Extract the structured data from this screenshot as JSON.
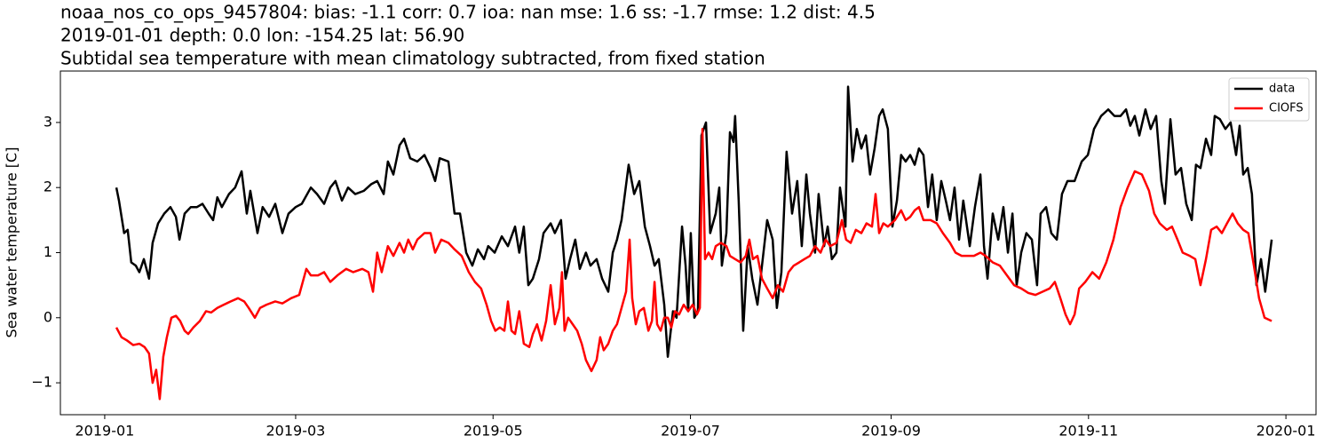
{
  "chart_data": {
    "type": "line",
    "title": [
      "noaa_nos_co_ops_9457804: bias: -1.1  corr: 0.7  ioa: nan  mse: 1.6  ss: -1.7  rmse: 1.2  dist: 4.5",
      "2019-01-01 depth: 0.0 lon: -154.25 lat: 56.90",
      "Subtidal sea temperature with mean climatology subtracted, from fixed station"
    ],
    "ylabel": "Sea water temperature [C]",
    "xlim": [
      -13.7,
      374.3
    ],
    "xticks": [
      {
        "value": 0,
        "label": "2019-01"
      },
      {
        "value": 59,
        "label": "2019-03"
      },
      {
        "value": 120,
        "label": "2019-05"
      },
      {
        "value": 181,
        "label": "2019-07"
      },
      {
        "value": 243,
        "label": "2019-09"
      },
      {
        "value": 304,
        "label": "2019-11"
      },
      {
        "value": 365,
        "label": "2020-01"
      }
    ],
    "ylim": [
      -1.49,
      3.79
    ],
    "yticks": [
      {
        "value": -1,
        "label": "−1"
      },
      0,
      1,
      2,
      3
    ],
    "grid": false,
    "legend": "upper right",
    "series": [
      {
        "name": "data",
        "color": "#000000",
        "x": [
          3.6,
          4.4,
          6.0,
          7.1,
          8.2,
          9.6,
          10.7,
          12.1,
          13.7,
          14.8,
          16.5,
          18.4,
          20.3,
          22.0,
          23.1,
          24.7,
          26.6,
          28.5,
          30.2,
          32.1,
          33.5,
          34.8,
          36.2,
          38.4,
          40.3,
          42.3,
          43.9,
          45.0,
          47.2,
          48.8,
          50.8,
          52.7,
          54.9,
          56.8,
          59.0,
          60.9,
          63.7,
          65.6,
          67.8,
          69.7,
          71.3,
          73.3,
          75.2,
          77.4,
          80.1,
          82.3,
          84.2,
          86.2,
          87.5,
          89.2,
          91.1,
          92.5,
          94.4,
          96.6,
          98.8,
          100.7,
          102.1,
          103.5,
          106.2,
          108.1,
          109.8,
          111.7,
          113.6,
          115.3,
          117.2,
          118.5,
          120.5,
          122.7,
          124.6,
          126.8,
          128.1,
          129.5,
          130.9,
          132.3,
          134.2,
          135.6,
          137.8,
          139.1,
          141.0,
          142.4,
          143.8,
          145.4,
          146.8,
          148.7,
          150.1,
          152.0,
          153.7,
          155.6,
          157.0,
          158.3,
          159.7,
          161.9,
          163.6,
          165.2,
          166.9,
          168.5,
          169.9,
          171.2,
          172.9,
          174.0,
          175.6,
          176.7,
          178.4,
          179.5,
          180.3,
          181.1,
          182.2,
          183.3,
          184.4,
          185.8,
          187.1,
          188.8,
          189.9,
          190.7,
          192.1,
          193.2,
          194.3,
          194.8,
          195.9,
          197.3,
          198.7,
          200.1,
          201.7,
          203.1,
          204.7,
          206.4,
          207.7,
          209.1,
          210.7,
          212.4,
          214.0,
          215.4,
          216.8,
          217.9,
          219.5,
          220.6,
          222.3,
          223.4,
          224.7,
          226.1,
          227.2,
          228.9,
          229.7,
          231.1,
          232.4,
          233.8,
          235.2,
          236.5,
          237.9,
          239.3,
          240.4,
          242.0,
          243.4,
          244.8,
          246.1,
          247.5,
          248.9,
          250.3,
          251.6,
          253.0,
          254.4,
          255.7,
          257.1,
          258.5,
          259.9,
          261.2,
          262.6,
          264.0,
          265.3,
          267.3,
          268.9,
          270.6,
          271.7,
          272.8,
          274.4,
          276.1,
          277.7,
          279.1,
          280.5,
          281.8,
          283.2,
          284.8,
          286.5,
          288.1,
          289.2,
          290.9,
          292.5,
          294.2,
          295.8,
          297.5,
          299.7,
          301.9,
          303.8,
          305.7,
          307.9,
          310.1,
          312.0,
          313.9,
          315.6,
          316.9,
          318.3,
          319.7,
          321.6,
          323.2,
          324.9,
          326.5,
          327.6,
          329.3,
          330.9,
          332.6,
          334.2,
          335.9,
          337.2,
          338.6,
          340.3,
          341.9,
          343.0,
          344.6,
          346.3,
          347.9,
          349.6,
          350.7,
          351.8,
          353.2,
          354.5,
          355.9,
          357.3,
          358.6,
          360.6
        ],
        "values": [
          2.0,
          1.8,
          1.3,
          1.35,
          0.85,
          0.8,
          0.7,
          0.9,
          0.6,
          1.15,
          1.45,
          1.6,
          1.7,
          1.55,
          1.2,
          1.6,
          1.7,
          1.7,
          1.75,
          1.6,
          1.5,
          1.85,
          1.7,
          1.9,
          2.0,
          2.25,
          1.6,
          1.95,
          1.3,
          1.7,
          1.55,
          1.75,
          1.3,
          1.6,
          1.7,
          1.75,
          2.0,
          1.9,
          1.75,
          2.0,
          2.1,
          1.8,
          2.0,
          1.9,
          1.95,
          2.05,
          2.1,
          1.9,
          2.4,
          2.2,
          2.65,
          2.75,
          2.45,
          2.4,
          2.5,
          2.3,
          2.1,
          2.45,
          2.4,
          1.6,
          1.6,
          1.0,
          0.8,
          1.05,
          0.9,
          1.1,
          1.0,
          1.25,
          1.1,
          1.4,
          1.0,
          1.4,
          0.5,
          0.6,
          0.9,
          1.3,
          1.45,
          1.3,
          1.5,
          0.6,
          0.9,
          1.2,
          0.75,
          1.0,
          0.8,
          0.9,
          0.6,
          0.4,
          1.0,
          1.2,
          1.5,
          2.35,
          1.9,
          2.1,
          1.4,
          1.1,
          0.8,
          0.9,
          0.2,
          -0.6,
          0.1,
          0.0,
          1.4,
          0.8,
          0.1,
          1.3,
          0.0,
          0.1,
          2.8,
          3.0,
          1.3,
          1.6,
          2.0,
          0.8,
          1.3,
          2.85,
          2.7,
          3.1,
          1.8,
          -0.2,
          1.1,
          0.6,
          0.2,
          0.8,
          1.5,
          1.2,
          0.15,
          0.7,
          2.55,
          1.6,
          2.1,
          1.1,
          2.2,
          1.6,
          1.0,
          1.9,
          1.1,
          1.4,
          0.9,
          1.0,
          2.0,
          1.4,
          3.55,
          2.4,
          2.9,
          2.6,
          2.8,
          2.2,
          2.6,
          3.1,
          3.2,
          2.9,
          1.4,
          1.8,
          2.5,
          2.4,
          2.5,
          2.35,
          2.6,
          2.5,
          1.7,
          2.2,
          1.5,
          2.1,
          1.8,
          1.5,
          2.0,
          1.2,
          1.8,
          1.1,
          1.7,
          2.2,
          1.1,
          0.6,
          1.6,
          1.2,
          1.7,
          1.0,
          1.6,
          0.5,
          1.0,
          1.3,
          1.2,
          0.5,
          1.6,
          1.7,
          1.3,
          1.2,
          1.9,
          2.1,
          2.1,
          2.4,
          2.5,
          2.9,
          3.1,
          3.2,
          3.1,
          3.1,
          3.2,
          2.95,
          3.1,
          2.8,
          3.2,
          2.9,
          3.1,
          2.1,
          1.75,
          3.05,
          2.2,
          2.3,
          1.75,
          1.5,
          2.35,
          2.3,
          2.75,
          2.5,
          3.1,
          3.05,
          2.9,
          3.0,
          2.5,
          2.95,
          2.2,
          2.3,
          1.9,
          0.5,
          0.9,
          0.4,
          1.2
        ]
      },
      {
        "name": "CIOFS",
        "color": "#ff0000",
        "x": [
          3.6,
          5.2,
          6.9,
          8.8,
          10.7,
          12.3,
          13.7,
          14.8,
          15.9,
          17.0,
          18.1,
          19.2,
          20.6,
          22.0,
          23.3,
          24.7,
          25.8,
          27.4,
          29.4,
          31.3,
          32.9,
          34.8,
          36.8,
          38.9,
          41.2,
          43.1,
          44.5,
          46.4,
          48.0,
          50.0,
          52.7,
          54.9,
          57.6,
          60.1,
          62.3,
          63.7,
          65.9,
          67.8,
          69.7,
          71.9,
          74.6,
          76.8,
          79.6,
          81.5,
          82.9,
          84.2,
          85.6,
          87.5,
          89.2,
          91.1,
          92.5,
          93.8,
          95.2,
          96.6,
          98.8,
          100.7,
          102.1,
          104.0,
          106.2,
          108.1,
          110.3,
          112.5,
          114.4,
          116.3,
          118.0,
          119.4,
          120.7,
          122.1,
          123.5,
          124.6,
          125.7,
          126.8,
          128.1,
          129.5,
          131.2,
          132.3,
          133.6,
          135.0,
          136.4,
          137.8,
          139.1,
          140.5,
          141.3,
          142.1,
          143.2,
          144.6,
          146.0,
          147.4,
          148.7,
          150.4,
          152.0,
          153.1,
          154.2,
          155.6,
          157.0,
          158.3,
          159.7,
          161.1,
          162.2,
          163.0,
          164.1,
          165.2,
          166.6,
          168.0,
          169.1,
          169.9,
          170.7,
          171.8,
          172.9,
          174.0,
          175.1,
          176.2,
          177.5,
          178.9,
          180.3,
          181.7,
          183.0,
          183.9,
          184.7,
          185.5,
          186.6,
          187.7,
          188.8,
          190.4,
          192.1,
          193.2,
          194.8,
          196.5,
          198.1,
          199.2,
          200.3,
          201.7,
          203.1,
          204.7,
          206.4,
          208.0,
          209.6,
          211.3,
          212.9,
          214.6,
          216.2,
          217.9,
          219.5,
          221.2,
          222.8,
          224.2,
          226.1,
          227.8,
          229.1,
          230.5,
          232.1,
          233.8,
          235.4,
          237.1,
          238.2,
          239.3,
          240.6,
          242.0,
          244.2,
          246.1,
          247.5,
          248.9,
          250.3,
          251.6,
          253.0,
          255.2,
          257.1,
          259.0,
          261.2,
          262.9,
          264.8,
          266.7,
          268.6,
          270.6,
          272.2,
          274.4,
          276.6,
          278.8,
          281.0,
          283.2,
          285.4,
          287.6,
          289.8,
          292.0,
          293.6,
          295.3,
          296.9,
          298.3,
          299.7,
          301.1,
          303.0,
          305.2,
          307.3,
          309.5,
          311.7,
          313.9,
          316.1,
          318.3,
          320.5,
          322.7,
          324.3,
          326.0,
          328.2,
          329.8,
          331.5,
          333.1,
          335.3,
          337.0,
          338.6,
          340.3,
          341.9,
          343.6,
          345.2,
          346.8,
          348.5,
          350.1,
          351.8,
          353.4,
          355.1,
          356.7,
          358.4,
          360.6
        ],
        "values": [
          -0.15,
          -0.3,
          -0.35,
          -0.42,
          -0.4,
          -0.45,
          -0.55,
          -1.0,
          -0.8,
          -1.25,
          -0.6,
          -0.3,
          0.0,
          0.03,
          -0.05,
          -0.2,
          -0.25,
          -0.15,
          -0.05,
          0.1,
          0.08,
          0.15,
          0.2,
          0.25,
          0.3,
          0.25,
          0.15,
          0.0,
          0.15,
          0.2,
          0.25,
          0.22,
          0.3,
          0.35,
          0.75,
          0.65,
          0.65,
          0.7,
          0.55,
          0.65,
          0.75,
          0.7,
          0.75,
          0.7,
          0.4,
          1.0,
          0.7,
          1.1,
          0.95,
          1.15,
          1.0,
          1.2,
          1.05,
          1.2,
          1.3,
          1.3,
          1.0,
          1.2,
          1.15,
          1.05,
          0.95,
          0.7,
          0.55,
          0.45,
          0.2,
          -0.05,
          -0.2,
          -0.15,
          -0.2,
          0.25,
          -0.2,
          -0.25,
          0.1,
          -0.4,
          -0.45,
          -0.25,
          -0.1,
          -0.35,
          -0.05,
          0.5,
          -0.1,
          0.15,
          0.7,
          -0.2,
          0.0,
          -0.1,
          -0.2,
          -0.4,
          -0.65,
          -0.82,
          -0.65,
          -0.3,
          -0.5,
          -0.4,
          -0.2,
          -0.1,
          0.15,
          0.4,
          1.2,
          0.3,
          -0.1,
          0.1,
          0.15,
          -0.2,
          -0.05,
          0.55,
          -0.1,
          -0.2,
          0.0,
          0.0,
          -0.15,
          0.1,
          0.05,
          0.2,
          0.1,
          0.2,
          0.05,
          0.15,
          2.9,
          0.9,
          1.0,
          0.9,
          1.1,
          1.15,
          1.1,
          0.95,
          0.9,
          0.85,
          0.95,
          1.2,
          0.9,
          0.95,
          0.6,
          0.45,
          0.3,
          0.5,
          0.4,
          0.7,
          0.8,
          0.85,
          0.9,
          0.95,
          1.1,
          1.0,
          1.2,
          1.1,
          1.15,
          1.5,
          1.2,
          1.15,
          1.35,
          1.3,
          1.45,
          1.4,
          1.9,
          1.3,
          1.45,
          1.4,
          1.5,
          1.65,
          1.5,
          1.55,
          1.65,
          1.7,
          1.5,
          1.5,
          1.45,
          1.3,
          1.15,
          1.0,
          0.95,
          0.95,
          0.95,
          1.0,
          0.95,
          0.85,
          0.8,
          0.65,
          0.5,
          0.45,
          0.38,
          0.35,
          0.4,
          0.45,
          0.55,
          0.3,
          0.05,
          -0.1,
          0.05,
          0.45,
          0.55,
          0.7,
          0.6,
          0.85,
          1.2,
          1.7,
          2.0,
          2.25,
          2.2,
          1.95,
          1.6,
          1.45,
          1.35,
          1.4,
          1.2,
          1.0,
          0.95,
          0.9,
          0.5,
          0.9,
          1.35,
          1.4,
          1.3,
          1.45,
          1.6,
          1.45,
          1.35,
          1.3,
          0.8,
          0.3,
          0.0,
          -0.05
        ]
      }
    ]
  }
}
